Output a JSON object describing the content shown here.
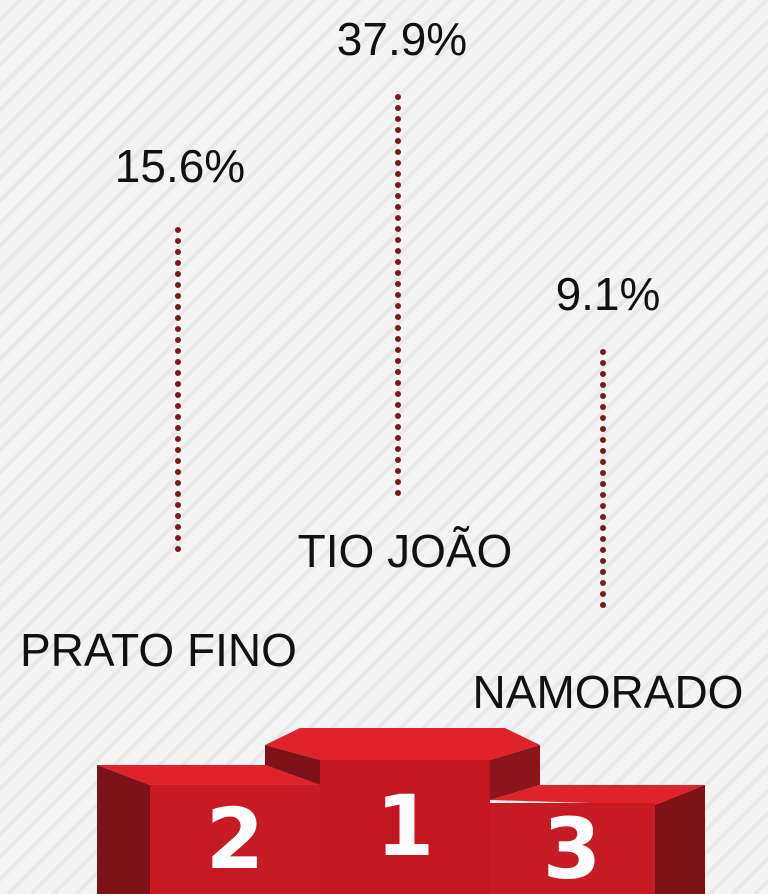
{
  "podium": [
    {
      "rank": "2",
      "label": "PRATO FINO",
      "value": "15.6%"
    },
    {
      "rank": "1",
      "label": "TIO JOÃO",
      "value": "37.9%"
    },
    {
      "rank": "3",
      "label": "NAMORADO",
      "value": "9.1%"
    }
  ]
}
